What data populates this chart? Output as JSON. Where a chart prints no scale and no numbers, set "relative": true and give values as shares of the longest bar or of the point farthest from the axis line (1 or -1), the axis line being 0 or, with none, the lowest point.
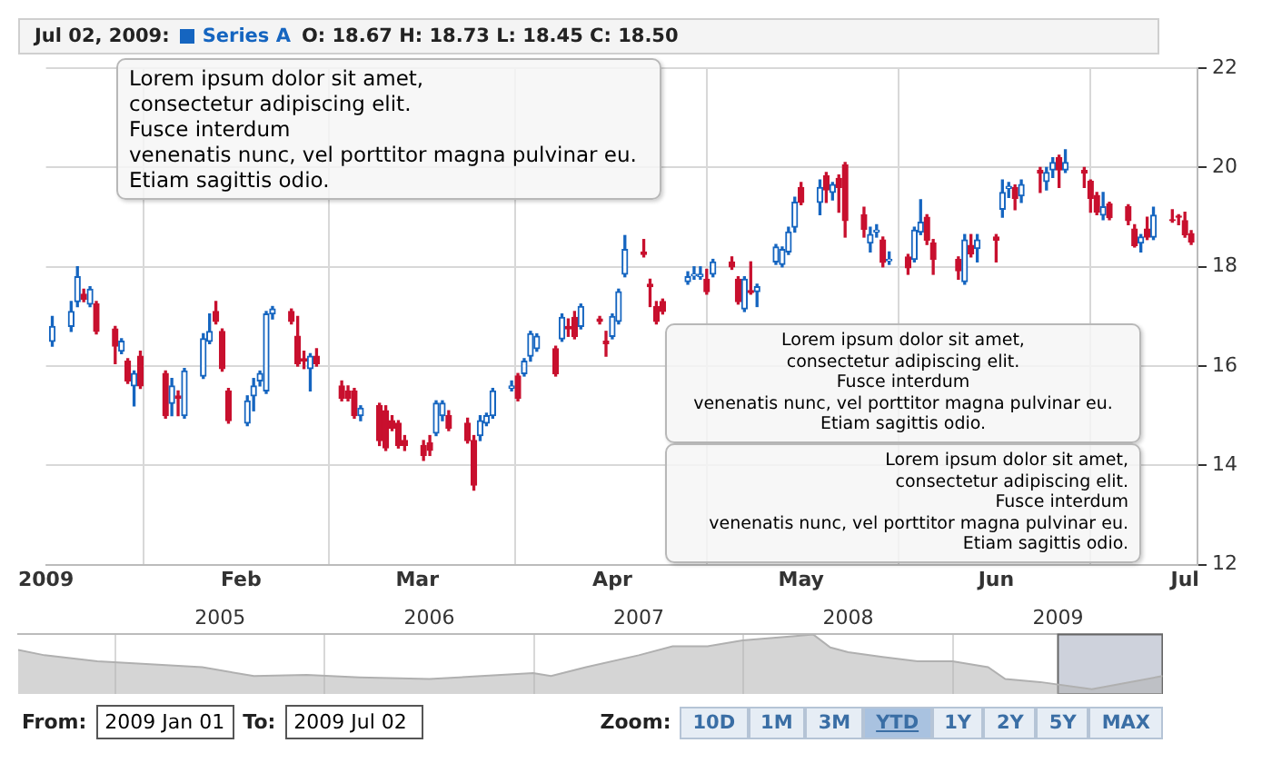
{
  "chart_data": [
    {
      "type": "candlestick",
      "legend": "top left",
      "grid": true,
      "annotations": [
        "Jul 02, 2009:",
        "O: 18.67 H: 18.73 L: 18.45 C: 18.50",
        "Lorem ipsum dolor sit amet,\n consectetur adipiscing elit.\nFusce interdum\nvenenatis nunc, vel porttitor magna pulvinar eu.\nEtiam sagittis odio.",
        "Lorem ipsum dolor sit amet,\n consectetur adipiscing elit.\nFusce interdum\nvenenatis nunc, vel porttitor magna pulvinar eu.\nEtiam sagittis odio.",
        "Lorem ipsum dolor sit amet,\n consectetur adipiscing elit.\nFusce interdum\nvenenatis nunc, vel porttitor magna pulvinar eu.\nEtiam sagittis odio."
      ],
      "xlim": [
        "2009-01-01",
        "2009-07-03"
      ],
      "xticks": [
        {
          "value": "2009-01-01",
          "label": "2009"
        },
        {
          "value": "2009-02-01",
          "label": "Feb"
        },
        {
          "value": "2009-03-01",
          "label": "Mar"
        },
        {
          "value": "2009-04-01",
          "label": "Apr"
        },
        {
          "value": "2009-05-01",
          "label": "May"
        },
        {
          "value": "2009-06-01",
          "label": "Jun"
        },
        {
          "value": "2009-07-01",
          "label": "Jul"
        }
      ],
      "ylim": [
        12,
        22
      ],
      "yticks": [
        12,
        14,
        16,
        18,
        20,
        22
      ],
      "series": [
        {
          "name": "Series A",
          "color": "#1565c0",
          "x": [
            "2009-01-02",
            "2009-01-05",
            "2009-01-06",
            "2009-01-07",
            "2009-01-08",
            "2009-01-09",
            "2009-01-12",
            "2009-01-13",
            "2009-01-14",
            "2009-01-15",
            "2009-01-16",
            "2009-01-20",
            "2009-01-21",
            "2009-01-22",
            "2009-01-23",
            "2009-01-26",
            "2009-01-27",
            "2009-01-28",
            "2009-01-29",
            "2009-01-30",
            "2009-02-02",
            "2009-02-03",
            "2009-02-04",
            "2009-02-05",
            "2009-02-06",
            "2009-02-09",
            "2009-02-10",
            "2009-02-11",
            "2009-02-12",
            "2009-02-13",
            "2009-02-17",
            "2009-02-18",
            "2009-02-19",
            "2009-02-20",
            "2009-02-23",
            "2009-02-24",
            "2009-02-25",
            "2009-02-26",
            "2009-02-27",
            "2009-03-02",
            "2009-03-03",
            "2009-03-04",
            "2009-03-05",
            "2009-03-06",
            "2009-03-09",
            "2009-03-10",
            "2009-03-11",
            "2009-03-12",
            "2009-03-13",
            "2009-03-16",
            "2009-03-17",
            "2009-03-18",
            "2009-03-19",
            "2009-03-20",
            "2009-03-23",
            "2009-03-24",
            "2009-03-25",
            "2009-03-26",
            "2009-03-27",
            "2009-03-30",
            "2009-03-31",
            "2009-04-01",
            "2009-04-02",
            "2009-04-03",
            "2009-04-06",
            "2009-04-07",
            "2009-04-08",
            "2009-04-09",
            "2009-04-13",
            "2009-04-14",
            "2009-04-15",
            "2009-04-16",
            "2009-04-17",
            "2009-04-20",
            "2009-04-21",
            "2009-04-22",
            "2009-04-23",
            "2009-04-24",
            "2009-04-27",
            "2009-04-28",
            "2009-04-29",
            "2009-04-30",
            "2009-05-01",
            "2009-05-04",
            "2009-05-05",
            "2009-05-06",
            "2009-05-07",
            "2009-05-08",
            "2009-05-11",
            "2009-05-12",
            "2009-05-13",
            "2009-05-14",
            "2009-05-15",
            "2009-05-18",
            "2009-05-19",
            "2009-05-20",
            "2009-05-21",
            "2009-05-22",
            "2009-05-26",
            "2009-05-27",
            "2009-05-28",
            "2009-05-29",
            "2009-06-01",
            "2009-06-02",
            "2009-06-03",
            "2009-06-04",
            "2009-06-05",
            "2009-06-08",
            "2009-06-09",
            "2009-06-10",
            "2009-06-11",
            "2009-06-12",
            "2009-06-15",
            "2009-06-16",
            "2009-06-17",
            "2009-06-18",
            "2009-06-19",
            "2009-06-22",
            "2009-06-23",
            "2009-06-24",
            "2009-06-25",
            "2009-06-26",
            "2009-06-29",
            "2009-06-30",
            "2009-07-01",
            "2009-07-02"
          ],
          "ohlc": [
            [
              16.5,
              17.0,
              16.4,
              16.8
            ],
            [
              16.8,
              17.3,
              16.7,
              17.1
            ],
            [
              17.3,
              18.0,
              17.2,
              17.8
            ],
            [
              17.45,
              17.55,
              17.3,
              17.35
            ],
            [
              17.25,
              17.6,
              17.2,
              17.55
            ],
            [
              17.25,
              17.3,
              16.65,
              16.7
            ],
            [
              16.75,
              16.8,
              16.05,
              16.4
            ],
            [
              16.3,
              16.55,
              16.25,
              16.5
            ],
            [
              16.1,
              16.15,
              15.65,
              15.7
            ],
            [
              15.6,
              15.9,
              15.2,
              15.85
            ],
            [
              16.2,
              16.3,
              15.55,
              15.6
            ],
            [
              15.85,
              15.9,
              14.95,
              15.0
            ],
            [
              15.25,
              15.75,
              15.0,
              15.6
            ],
            [
              15.4,
              15.5,
              15.0,
              15.35
            ],
            [
              15.0,
              15.95,
              14.95,
              15.9
            ],
            [
              15.8,
              16.65,
              15.75,
              16.55
            ],
            [
              16.5,
              17.05,
              16.45,
              16.7
            ],
            [
              17.1,
              17.3,
              16.85,
              16.9
            ],
            [
              16.7,
              16.75,
              15.9,
              15.95
            ],
            [
              15.5,
              15.55,
              14.85,
              14.9
            ],
            [
              14.85,
              15.4,
              14.8,
              15.3
            ],
            [
              15.4,
              15.75,
              15.1,
              15.6
            ],
            [
              15.7,
              15.9,
              15.6,
              15.85
            ],
            [
              15.5,
              17.1,
              15.45,
              17.05
            ],
            [
              17.05,
              17.2,
              16.95,
              17.15
            ],
            [
              17.1,
              17.15,
              16.85,
              16.9
            ],
            [
              16.6,
              17.0,
              16.0,
              16.05
            ],
            [
              16.15,
              16.3,
              15.95,
              16.1
            ],
            [
              15.95,
              16.25,
              15.5,
              16.2
            ],
            [
              16.2,
              16.35,
              16.0,
              16.05
            ],
            [
              15.6,
              15.7,
              15.3,
              15.35
            ],
            [
              15.5,
              15.6,
              15.3,
              15.35
            ],
            [
              15.5,
              15.55,
              14.95,
              15.0
            ],
            [
              15.0,
              15.2,
              14.9,
              15.15
            ],
            [
              15.2,
              15.25,
              14.4,
              14.5
            ],
            [
              15.1,
              15.2,
              14.3,
              14.35
            ],
            [
              14.9,
              15.0,
              14.7,
              14.75
            ],
            [
              14.85,
              14.9,
              14.35,
              14.4
            ],
            [
              14.5,
              14.6,
              14.3,
              14.4
            ],
            [
              14.4,
              14.5,
              14.1,
              14.2
            ],
            [
              14.45,
              14.6,
              14.2,
              14.3
            ],
            [
              14.65,
              15.3,
              14.6,
              15.25
            ],
            [
              15.0,
              15.3,
              14.9,
              15.25
            ],
            [
              15.0,
              15.1,
              14.7,
              14.75
            ],
            [
              14.85,
              14.95,
              14.45,
              14.5
            ],
            [
              14.5,
              14.6,
              13.5,
              13.6
            ],
            [
              14.6,
              15.0,
              14.5,
              14.9
            ],
            [
              14.85,
              15.05,
              14.8,
              15.0
            ],
            [
              15.0,
              15.55,
              14.95,
              15.5
            ],
            [
              15.55,
              15.7,
              15.5,
              15.6
            ],
            [
              15.8,
              15.85,
              15.3,
              15.35
            ],
            [
              15.85,
              16.15,
              15.8,
              16.1
            ],
            [
              16.2,
              16.7,
              16.1,
              16.65
            ],
            [
              16.35,
              16.65,
              16.3,
              16.6
            ],
            [
              16.35,
              16.4,
              15.8,
              15.85
            ],
            [
              16.55,
              17.05,
              16.5,
              16.98
            ],
            [
              16.8,
              16.95,
              16.6,
              16.75
            ],
            [
              16.98,
              17.1,
              16.55,
              16.6
            ],
            [
              16.8,
              17.25,
              16.75,
              17.2
            ],
            [
              16.95,
              17.0,
              16.85,
              16.9
            ],
            [
              16.5,
              16.7,
              16.2,
              16.45
            ],
            [
              16.6,
              17.05,
              16.55,
              17.0
            ],
            [
              16.9,
              17.55,
              16.85,
              17.5
            ],
            [
              17.85,
              18.63,
              17.8,
              18.35
            ],
            [
              18.3,
              18.55,
              18.2,
              18.25
            ],
            [
              17.65,
              17.75,
              17.2,
              17.6
            ],
            [
              17.2,
              17.3,
              16.85,
              16.9
            ],
            [
              17.3,
              17.35,
              17.05,
              17.1
            ],
            [
              17.7,
              17.9,
              17.65,
              17.8
            ],
            [
              17.82,
              18.0,
              17.75,
              17.85
            ],
            [
              17.8,
              18.0,
              17.75,
              17.85
            ],
            [
              17.75,
              17.95,
              17.45,
              17.5
            ],
            [
              17.85,
              18.15,
              17.8,
              18.1
            ],
            [
              18.1,
              18.2,
              17.95,
              18.0
            ],
            [
              17.75,
              17.8,
              17.25,
              17.3
            ],
            [
              17.15,
              17.8,
              17.1,
              17.75
            ],
            [
              17.52,
              18.1,
              17.45,
              17.48
            ],
            [
              17.5,
              17.65,
              17.2,
              17.6
            ],
            [
              18.1,
              18.45,
              18.05,
              18.4
            ],
            [
              18.05,
              18.4,
              18.0,
              18.35
            ],
            [
              18.3,
              18.8,
              18.25,
              18.7
            ],
            [
              18.8,
              19.4,
              18.7,
              19.3
            ],
            [
              19.6,
              19.7,
              19.25,
              19.3
            ],
            [
              19.3,
              19.75,
              19.05,
              19.6
            ],
            [
              19.83,
              19.9,
              19.3,
              19.55
            ],
            [
              19.5,
              19.7,
              19.35,
              19.66
            ],
            [
              19.78,
              19.85,
              19.1,
              19.6
            ],
            [
              20.05,
              20.1,
              18.6,
              18.93
            ],
            [
              19.05,
              19.2,
              18.6,
              18.76
            ],
            [
              18.48,
              18.8,
              18.3,
              18.65
            ],
            [
              18.7,
              18.85,
              18.6,
              18.74
            ],
            [
              18.54,
              18.6,
              18.0,
              18.09
            ],
            [
              18.12,
              18.3,
              18.05,
              18.15
            ],
            [
              18.2,
              18.25,
              17.85,
              17.98
            ],
            [
              18.15,
              18.8,
              18.1,
              18.74
            ],
            [
              18.7,
              19.35,
              18.65,
              18.9
            ],
            [
              19.0,
              19.05,
              18.45,
              18.54
            ],
            [
              18.48,
              18.55,
              17.85,
              18.15
            ],
            [
              18.15,
              18.2,
              17.75,
              17.92
            ],
            [
              17.7,
              18.65,
              17.65,
              18.54
            ],
            [
              18.43,
              18.65,
              18.2,
              18.26
            ],
            [
              18.37,
              18.65,
              18.1,
              18.54
            ],
            [
              18.6,
              18.65,
              18.1,
              18.54
            ],
            [
              19.16,
              19.75,
              19.0,
              19.5
            ],
            [
              19.58,
              19.7,
              19.4,
              19.62
            ],
            [
              19.6,
              19.65,
              19.15,
              19.38
            ],
            [
              19.43,
              19.75,
              19.3,
              19.66
            ],
            [
              19.94,
              20.0,
              19.5,
              19.89
            ],
            [
              19.72,
              20.0,
              19.55,
              19.9
            ],
            [
              19.95,
              20.2,
              19.8,
              20.1
            ],
            [
              20.2,
              20.25,
              19.6,
              19.95
            ],
            [
              19.95,
              20.36,
              19.9,
              20.1
            ],
            [
              19.94,
              20.0,
              19.6,
              19.89
            ],
            [
              19.72,
              19.75,
              19.1,
              19.38
            ],
            [
              19.44,
              19.5,
              19.05,
              19.1
            ],
            [
              19.04,
              19.5,
              18.95,
              19.21
            ],
            [
              19.27,
              19.3,
              18.95,
              18.99
            ],
            [
              19.21,
              19.25,
              18.85,
              18.93
            ],
            [
              18.76,
              18.85,
              18.4,
              18.43
            ],
            [
              18.48,
              18.65,
              18.3,
              18.6
            ],
            [
              18.76,
              19.0,
              18.55,
              18.6
            ],
            [
              18.6,
              19.2,
              18.55,
              19.04
            ],
            [
              18.95,
              19.15,
              18.9,
              18.93
            ],
            [
              19.02,
              19.05,
              18.85,
              19.0
            ],
            [
              18.93,
              19.1,
              18.6,
              18.65
            ],
            [
              18.67,
              18.73,
              18.45,
              18.5
            ]
          ],
          "colors": [
            "#1565c0",
            "#1565c0",
            "#1565c0",
            "#c8102e",
            "#1565c0",
            "#c8102e",
            "#c8102e",
            "#1565c0",
            "#c8102e",
            "#1565c0",
            "#c8102e",
            "#c8102e",
            "#1565c0",
            "#c8102e",
            "#1565c0",
            "#1565c0",
            "#1565c0",
            "#c8102e",
            "#c8102e",
            "#c8102e",
            "#1565c0",
            "#1565c0",
            "#1565c0",
            "#1565c0",
            "#1565c0",
            "#c8102e",
            "#c8102e",
            "#c8102e",
            "#1565c0",
            "#c8102e",
            "#c8102e",
            "#c8102e",
            "#c8102e",
            "#1565c0",
            "#c8102e",
            "#c8102e",
            "#c8102e",
            "#c8102e",
            "#c8102e",
            "#c8102e",
            "#c8102e",
            "#1565c0",
            "#1565c0",
            "#c8102e",
            "#c8102e",
            "#c8102e",
            "#1565c0",
            "#1565c0",
            "#1565c0",
            "#1565c0",
            "#c8102e",
            "#1565c0",
            "#1565c0",
            "#1565c0",
            "#c8102e",
            "#1565c0",
            "#c8102e",
            "#c8102e",
            "#1565c0",
            "#c8102e",
            "#c8102e",
            "#1565c0",
            "#1565c0",
            "#1565c0",
            "#c8102e",
            "#c8102e",
            "#c8102e",
            "#c8102e",
            "#1565c0",
            "#1565c0",
            "#1565c0",
            "#c8102e",
            "#1565c0",
            "#c8102e",
            "#c8102e",
            "#1565c0",
            "#c8102e",
            "#1565c0",
            "#1565c0",
            "#1565c0",
            "#1565c0",
            "#1565c0",
            "#c8102e",
            "#1565c0",
            "#c8102e",
            "#1565c0",
            "#c8102e",
            "#c8102e",
            "#c8102e",
            "#1565c0",
            "#1565c0",
            "#c8102e",
            "#1565c0",
            "#c8102e",
            "#1565c0",
            "#1565c0",
            "#c8102e",
            "#c8102e",
            "#c8102e",
            "#1565c0",
            "#c8102e",
            "#1565c0",
            "#c8102e",
            "#1565c0",
            "#1565c0",
            "#c8102e",
            "#1565c0",
            "#c8102e",
            "#1565c0",
            "#1565c0",
            "#c8102e",
            "#1565c0",
            "#c8102e",
            "#c8102e",
            "#c8102e",
            "#1565c0",
            "#c8102e",
            "#c8102e",
            "#c8102e",
            "#1565c0",
            "#c8102e",
            "#1565c0",
            "#c8102e",
            "#c8102e",
            "#c8102e",
            "#c8102e"
          ]
        }
      ]
    },
    {
      "type": "area",
      "relative": true,
      "grid": "x",
      "tick_labels": "x",
      "annotations": [
        "From:",
        "2009 Jan 01",
        "To:",
        "2009 Jul 02",
        "Zoom:",
        "10D",
        "1M",
        "3M",
        "YTD",
        "1Y",
        "2Y",
        "5Y",
        "MAX"
      ],
      "xlim": [
        "2004-01-15",
        "2009-07-03"
      ],
      "xticks": [
        {
          "value": "2005-01-01",
          "label": "2005"
        },
        {
          "value": "2006-01-01",
          "label": "2006"
        },
        {
          "value": "2007-01-01",
          "label": "2007"
        },
        {
          "value": "2008-01-01",
          "label": "2008"
        },
        {
          "value": "2009-01-01",
          "label": "2009"
        }
      ],
      "bands": [
        {
          "axis": "x",
          "from": "2009-01-01",
          "to": "2009-07-02",
          "color": "#6b7896"
        }
      ],
      "series": [
        {
          "color": "#b0b0b0",
          "x": [
            "2004-01-15",
            "2004-03-01",
            "2004-06-01",
            "2004-09-01",
            "2004-12-01",
            "2005-03-01",
            "2005-06-01",
            "2005-09-01",
            "2006-01-01",
            "2006-04-01",
            "2006-07-01",
            "2006-08-01",
            "2006-10-01",
            "2007-01-01",
            "2007-03-01",
            "2007-05-01",
            "2007-07-01",
            "2007-10-01",
            "2007-11-01",
            "2007-12-01",
            "2008-01-01",
            "2008-03-01",
            "2008-05-01",
            "2008-07-01",
            "2008-09-01",
            "2008-10-01",
            "2008-12-01",
            "2009-03-01",
            "2009-07-02"
          ],
          "values": [
            0.74,
            0.65,
            0.55,
            0.5,
            0.45,
            0.3,
            0.32,
            0.28,
            0.25,
            0.3,
            0.35,
            0.3,
            0.45,
            0.65,
            0.8,
            0.8,
            0.9,
            0.97,
            1.0,
            0.78,
            0.7,
            0.62,
            0.55,
            0.55,
            0.45,
            0.25,
            0.2,
            0.08,
            0.3
          ]
        }
      ]
    }
  ]
}
